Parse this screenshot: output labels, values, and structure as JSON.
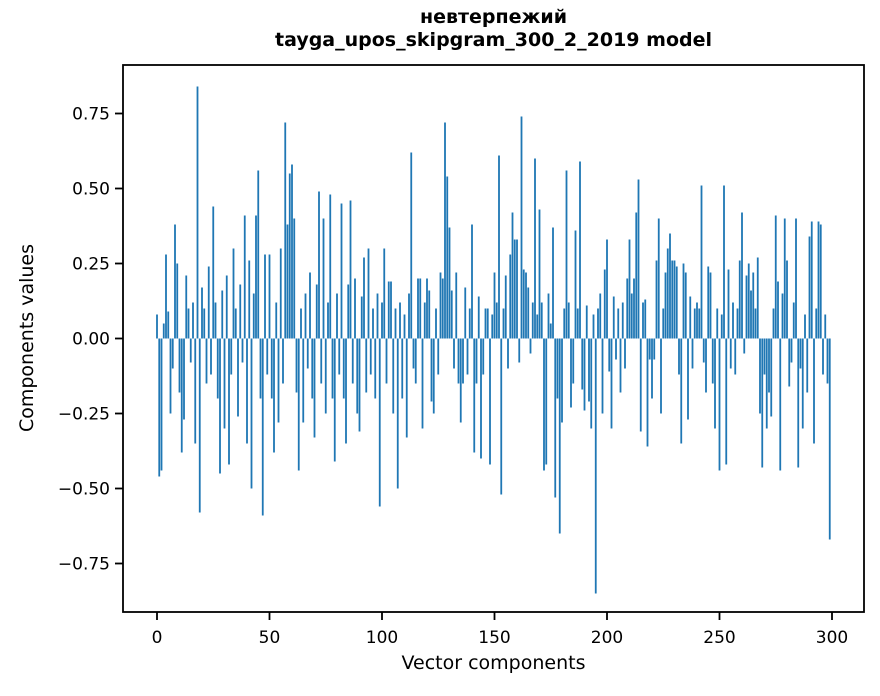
{
  "figure": {
    "title_line1": "невтерпежий",
    "title_line2": "tayga_upos_skipgram_300_2_2019 model",
    "xlabel": "Vector components",
    "ylabel": "Components values"
  },
  "chart_data": {
    "type": "bar",
    "title": "невтерпежий\ntayga_upos_skipgram_300_2_2019 model",
    "xlabel": "Vector components",
    "ylabel": "Components values",
    "x_description": "vector component index 0–299",
    "n_components": 300,
    "bar_color": "#1f77b4",
    "axis_color": "#000000",
    "grid": false,
    "legend": null,
    "xlim": [
      -15,
      315
    ],
    "ylim": [
      -0.92,
      0.92
    ],
    "xticks": [
      0,
      50,
      100,
      150,
      200,
      250,
      300
    ],
    "xtick_labels": [
      "0",
      "50",
      "100",
      "150",
      "200",
      "250",
      "300"
    ],
    "yticks": [
      0.75,
      0.5,
      0.25,
      0.0,
      -0.25,
      -0.5,
      -0.75
    ],
    "ytick_labels": [
      "0.75",
      "0.50",
      "0.25",
      "0.00",
      "−0.25",
      "−0.50",
      "−0.75"
    ],
    "values": [
      0.08,
      -0.46,
      -0.44,
      0.05,
      0.28,
      0.09,
      -0.25,
      -0.1,
      0.38,
      0.25,
      -0.18,
      -0.38,
      -0.27,
      0.21,
      0.1,
      -0.08,
      0.12,
      -0.35,
      0.84,
      -0.58,
      0.17,
      0.1,
      -0.15,
      0.24,
      -0.12,
      0.44,
      0.12,
      -0.2,
      -0.45,
      0.16,
      -0.3,
      0.21,
      -0.42,
      -0.12,
      0.3,
      0.1,
      -0.26,
      0.18,
      -0.08,
      0.41,
      -0.35,
      0.26,
      -0.5,
      0.15,
      0.41,
      0.56,
      -0.2,
      -0.59,
      0.28,
      -0.12,
      0.28,
      -0.2,
      -0.38,
      0.12,
      -0.28,
      0.3,
      -0.15,
      0.72,
      0.38,
      0.55,
      0.58,
      0.4,
      -0.18,
      -0.44,
      0.1,
      -0.28,
      0.15,
      -0.1,
      0.22,
      -0.2,
      -0.33,
      0.18,
      0.49,
      -0.15,
      0.4,
      -0.25,
      0.12,
      0.48,
      -0.2,
      -0.41,
      0.15,
      -0.12,
      0.45,
      -0.2,
      -0.35,
      0.18,
      0.46,
      -0.15,
      0.2,
      -0.25,
      -0.31,
      0.14,
      0.27,
      -0.18,
      0.3,
      -0.12,
      0.1,
      -0.2,
      0.15,
      -0.56,
      0.12,
      0.3,
      -0.15,
      0.19,
      0.19,
      -0.25,
      0.1,
      -0.5,
      0.12,
      -0.2,
      0.08,
      -0.33,
      0.15,
      0.62,
      -0.1,
      -0.15,
      0.2,
      0.2,
      -0.3,
      0.12,
      0.2,
      0.16,
      -0.21,
      -0.25,
      0.1,
      -0.12,
      0.22,
      0.2,
      0.72,
      0.54,
      0.37,
      0.16,
      -0.1,
      0.22,
      -0.15,
      -0.28,
      -0.15,
      0.17,
      -0.12,
      0.1,
      0.38,
      -0.38,
      -0.15,
      0.14,
      -0.4,
      -0.12,
      0.1,
      0.1,
      -0.42,
      0.08,
      0.22,
      0.12,
      0.61,
      -0.52,
      0.1,
      0.21,
      -0.1,
      0.28,
      0.42,
      0.33,
      0.33,
      -0.08,
      0.74,
      0.23,
      0.22,
      0.17,
      -0.05,
      0.12,
      0.6,
      0.08,
      0.43,
      0.12,
      -0.44,
      -0.42,
      0.15,
      0.05,
      0.37,
      -0.53,
      -0.2,
      -0.65,
      -0.28,
      0.1,
      0.56,
      0.12,
      -0.23,
      -0.15,
      0.36,
      0.1,
      0.59,
      -0.17,
      -0.24,
      0.11,
      -0.21,
      -0.3,
      0.08,
      -0.85,
      0.1,
      0.15,
      -0.25,
      0.23,
      0.33,
      -0.11,
      -0.3,
      0.14,
      -0.07,
      0.1,
      -0.18,
      0.12,
      -0.1,
      0.2,
      0.33,
      0.15,
      0.2,
      0.42,
      0.53,
      -0.31,
      0.12,
      0.13,
      -0.36,
      -0.07,
      -0.2,
      -0.07,
      0.26,
      0.4,
      -0.25,
      0.1,
      0.22,
      0.3,
      0.35,
      0.26,
      0.26,
      0.24,
      -0.12,
      -0.35,
      0.25,
      0.22,
      -0.27,
      0.14,
      -0.1,
      0.1,
      0.12,
      0.1,
      0.51,
      -0.08,
      -0.18,
      0.24,
      0.22,
      -0.15,
      -0.3,
      0.1,
      -0.44,
      0.08,
      0.51,
      -0.42,
      0.23,
      -0.1,
      0.12,
      -0.12,
      0.1,
      0.26,
      0.42,
      -0.05,
      0.21,
      0.25,
      0.16,
      0.22,
      0.1,
      0.27,
      -0.25,
      -0.43,
      -0.12,
      -0.3,
      -0.18,
      -0.26,
      0.1,
      0.41,
      0.19,
      -0.44,
      0.15,
      0.4,
      0.26,
      -0.16,
      -0.08,
      0.12,
      0.4,
      -0.43,
      -0.1,
      -0.3,
      0.08,
      -0.18,
      0.34,
      0.39,
      -0.35,
      0.1,
      0.39,
      0.38,
      -0.12,
      0.08,
      -0.15,
      -0.67
    ]
  }
}
